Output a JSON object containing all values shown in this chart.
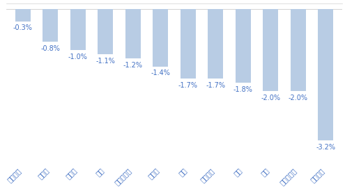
{
  "categories": [
    "其他食品",
    "肉制品",
    "软饮料",
    "白酒",
    "调味发酵品",
    "保健品",
    "乳品",
    "烘焙食品",
    "茶叶",
    "啤酒",
    "预加工食品",
    "其他酒类"
  ],
  "values": [
    -0.3,
    -0.8,
    -1.0,
    -1.1,
    -1.2,
    -1.4,
    -1.7,
    -1.7,
    -1.8,
    -2.0,
    -2.0,
    -3.2
  ],
  "bar_color": "#b8cce4",
  "label_color": "#4472c4",
  "tick_color": "#4472c4",
  "ylim": [
    -3.8,
    0.15
  ],
  "background_color": "#ffffff",
  "label_fontsize": 7.0,
  "tick_fontsize": 7.0,
  "bar_width": 0.55
}
